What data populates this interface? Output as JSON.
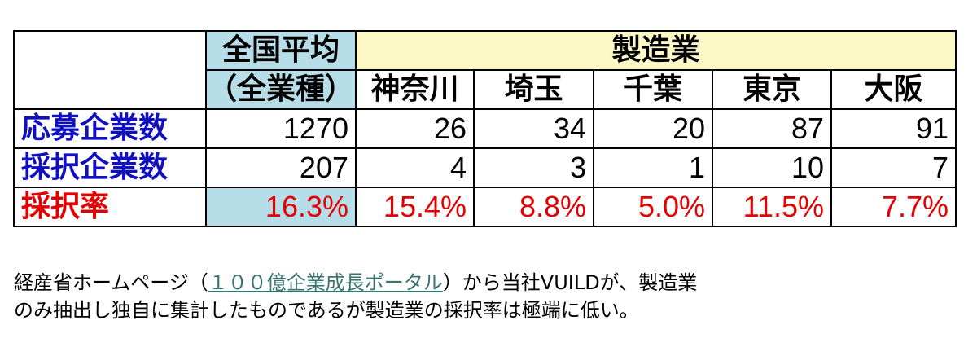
{
  "table": {
    "header1": {
      "national": "全国平均",
      "manufacturing": "製造業"
    },
    "header2": {
      "national": "（全業種）",
      "prefectures": [
        "神奈川",
        "埼玉",
        "千葉",
        "東京",
        "大阪"
      ]
    },
    "rows": [
      {
        "label": "応募企業数",
        "national": "1270",
        "values": [
          "26",
          "34",
          "20",
          "87",
          "91"
        ]
      },
      {
        "label": "採択企業数",
        "national": "207",
        "values": [
          "4",
          "3",
          "1",
          "10",
          "7"
        ]
      },
      {
        "label": "採択率",
        "national": "16.3%",
        "values": [
          "15.4%",
          "8.8%",
          "5.0%",
          "11.5%",
          "7.7%"
        ]
      }
    ]
  },
  "caption": {
    "line1_prefix": "経産省ホームページ（",
    "link_text": "１００億企業成長ポータル",
    "line1_suffix": "）から当社VUILDが、製造業",
    "line2": "のみ抽出し独自に集計したものであるが製造業の採択率は極端に低い。"
  },
  "colors": {
    "national_header_bg": "#b7dde8",
    "manufacturing_header_bg": "#fdf9c6",
    "label_blue": "#1010c0",
    "rate_red": "#e30000",
    "link_color": "#3a7470"
  }
}
